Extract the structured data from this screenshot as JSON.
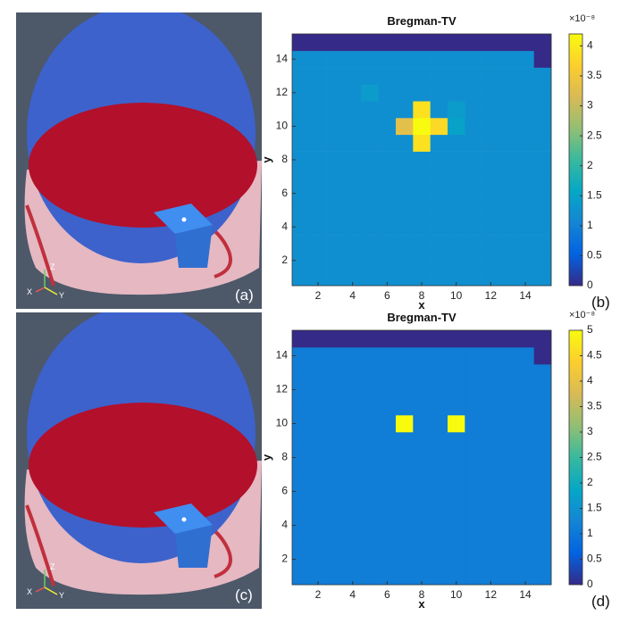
{
  "renders": [
    {
      "label": "(a)",
      "axes": [
        "Z",
        "X",
        "Y"
      ]
    },
    {
      "label": "(c)",
      "axes": [
        "Z",
        "X",
        "Y"
      ]
    }
  ],
  "chart_data": [
    {
      "type": "heatmap",
      "title": "Bregman-TV",
      "panel_label": "(b)",
      "x_label": "x",
      "y_label": "y",
      "x": [
        1,
        2,
        3,
        4,
        5,
        6,
        7,
        8,
        9,
        10,
        11,
        12,
        13,
        14,
        15
      ],
      "y": [
        1,
        2,
        3,
        4,
        5,
        6,
        7,
        8,
        9,
        10,
        11,
        12,
        13,
        14,
        15
      ],
      "z": [
        [
          1.2,
          1.2,
          1.2,
          1.2,
          1.2,
          1.2,
          1.2,
          1.2,
          1.2,
          1.2,
          1.2,
          1.2,
          1.2,
          1.2,
          1.2
        ],
        [
          1.2,
          1.2,
          1.2,
          1.2,
          1.2,
          1.2,
          1.2,
          1.2,
          1.2,
          1.2,
          1.2,
          1.2,
          1.2,
          1.2,
          1.2
        ],
        [
          1.2,
          1.2,
          1.2,
          1.2,
          1.2,
          1.2,
          1.2,
          1.2,
          1.2,
          1.2,
          1.2,
          1.2,
          1.2,
          1.2,
          1.2
        ],
        [
          1.2,
          1.2,
          1.2,
          1.2,
          1.2,
          1.2,
          1.2,
          1.2,
          1.2,
          1.2,
          1.2,
          1.2,
          1.2,
          1.2,
          1.2
        ],
        [
          1.2,
          1.2,
          1.2,
          1.2,
          1.2,
          1.2,
          1.2,
          1.2,
          1.2,
          1.2,
          1.2,
          1.2,
          1.2,
          1.2,
          1.2
        ],
        [
          1.2,
          1.2,
          1.2,
          1.2,
          1.2,
          1.2,
          1.2,
          1.2,
          1.2,
          1.2,
          1.2,
          1.2,
          1.2,
          1.2,
          1.2
        ],
        [
          1.2,
          1.2,
          1.2,
          1.2,
          1.2,
          1.2,
          1.2,
          1.2,
          1.2,
          1.2,
          1.2,
          1.2,
          1.2,
          1.2,
          1.2
        ],
        [
          1.2,
          1.2,
          1.2,
          1.2,
          1.2,
          1.2,
          1.2,
          1.2,
          1.2,
          1.2,
          1.2,
          1.2,
          1.2,
          1.2,
          1.2
        ],
        [
          1.2,
          1.2,
          1.2,
          1.2,
          1.2,
          1.2,
          1.2,
          3.9,
          1.2,
          1.2,
          1.2,
          1.2,
          1.2,
          1.2,
          1.2
        ],
        [
          1.2,
          1.2,
          1.2,
          1.2,
          1.2,
          1.2,
          3.3,
          4.2,
          3.8,
          1.5,
          1.2,
          1.2,
          1.2,
          1.2,
          1.2
        ],
        [
          1.2,
          1.2,
          1.2,
          1.2,
          1.2,
          1.2,
          1.2,
          3.9,
          1.2,
          1.4,
          1.2,
          1.2,
          1.2,
          1.2,
          1.2
        ],
        [
          1.2,
          1.2,
          1.2,
          1.2,
          1.4,
          1.2,
          1.2,
          1.2,
          1.2,
          1.2,
          1.2,
          1.2,
          1.2,
          1.2,
          1.2
        ],
        [
          1.2,
          1.2,
          1.2,
          1.2,
          1.2,
          1.2,
          1.2,
          1.2,
          1.2,
          1.2,
          1.2,
          1.2,
          1.2,
          1.2,
          1.2
        ],
        [
          1.2,
          1.2,
          1.2,
          1.2,
          1.2,
          1.2,
          1.2,
          1.2,
          1.2,
          1.2,
          1.2,
          1.2,
          1.2,
          1.2,
          0
        ],
        [
          0,
          0,
          0,
          0,
          0,
          0,
          0,
          0,
          0,
          0,
          0,
          0,
          0,
          0,
          0
        ]
      ],
      "xlim": [
        0.5,
        15.5
      ],
      "ylim": [
        0.5,
        15.5
      ],
      "xticks": [
        2,
        4,
        6,
        8,
        10,
        12,
        14
      ],
      "yticks": [
        2,
        4,
        6,
        8,
        10,
        12,
        14
      ],
      "colorbar_lim": [
        0,
        4.2
      ],
      "colorbar_ticks": [
        0,
        0.5,
        1,
        1.5,
        2,
        2.5,
        3,
        3.5,
        4
      ],
      "colorbar_multiplier": "×10⁻⁸",
      "colormap": "parula"
    },
    {
      "type": "heatmap",
      "title": "Bregman-TV",
      "panel_label": "(d)",
      "x_label": "x",
      "y_label": "y",
      "x": [
        1,
        2,
        3,
        4,
        5,
        6,
        7,
        8,
        9,
        10,
        11,
        12,
        13,
        14,
        15
      ],
      "y": [
        1,
        2,
        3,
        4,
        5,
        6,
        7,
        8,
        9,
        10,
        11,
        12,
        13,
        14,
        15
      ],
      "z": [
        [
          1.1,
          1.1,
          1.1,
          1.1,
          1.1,
          1.1,
          1.1,
          1.1,
          1.1,
          1.1,
          1.1,
          1.1,
          1.1,
          1.1,
          1.1
        ],
        [
          1.1,
          1.1,
          1.1,
          1.1,
          1.1,
          1.1,
          1.1,
          1.1,
          1.1,
          1.1,
          1.1,
          1.1,
          1.1,
          1.1,
          1.1
        ],
        [
          1.1,
          1.1,
          1.1,
          1.1,
          1.1,
          1.1,
          1.1,
          1.1,
          1.1,
          1.1,
          1.1,
          1.1,
          1.1,
          1.1,
          1.1
        ],
        [
          1.1,
          1.1,
          1.1,
          1.1,
          1.1,
          1.1,
          1.1,
          1.1,
          1.1,
          1.1,
          1.1,
          1.1,
          1.1,
          1.1,
          1.1
        ],
        [
          1.1,
          1.1,
          1.1,
          1.1,
          1.1,
          1.1,
          1.1,
          1.1,
          1.1,
          1.1,
          1.1,
          1.1,
          1.1,
          1.1,
          1.1
        ],
        [
          1.1,
          1.1,
          1.1,
          1.1,
          1.1,
          1.1,
          1.1,
          1.1,
          1.1,
          1.1,
          1.1,
          1.1,
          1.1,
          1.1,
          1.1
        ],
        [
          1.1,
          1.1,
          1.1,
          1.1,
          1.1,
          1.1,
          1.1,
          1.1,
          1.1,
          1.1,
          1.1,
          1.1,
          1.1,
          1.1,
          1.1
        ],
        [
          1.1,
          1.1,
          1.1,
          1.1,
          1.1,
          1.1,
          1.1,
          1.1,
          1.1,
          1.1,
          1.1,
          1.1,
          1.1,
          1.1,
          1.1
        ],
        [
          1.1,
          1.1,
          1.1,
          1.1,
          1.1,
          1.1,
          1.1,
          1.1,
          1.1,
          1.1,
          1.1,
          1.1,
          1.1,
          1.1,
          1.1
        ],
        [
          1.1,
          1.1,
          1.1,
          1.1,
          1.1,
          1.1,
          5,
          1.1,
          1.1,
          5,
          1.1,
          1.1,
          1.1,
          1.1,
          1.1
        ],
        [
          1.1,
          1.1,
          1.1,
          1.1,
          1.1,
          1.1,
          1.1,
          1.1,
          1.1,
          1.1,
          1.1,
          1.1,
          1.1,
          1.1,
          1.1
        ],
        [
          1.1,
          1.1,
          1.1,
          1.1,
          1.1,
          1.1,
          1.1,
          1.1,
          1.1,
          1.1,
          1.1,
          1.1,
          1.1,
          1.1,
          1.1
        ],
        [
          1.1,
          1.1,
          1.1,
          1.1,
          1.1,
          1.1,
          1.1,
          1.1,
          1.1,
          1.1,
          1.1,
          1.1,
          1.1,
          1.1,
          1.1
        ],
        [
          1.1,
          1.1,
          1.1,
          1.1,
          1.1,
          1.1,
          1.1,
          1.1,
          1.1,
          1.1,
          1.1,
          1.1,
          1.1,
          1.1,
          0
        ],
        [
          0,
          0,
          0,
          0,
          0,
          0,
          0,
          0,
          0,
          0,
          0,
          0,
          0,
          0,
          0
        ]
      ],
      "xlim": [
        0.5,
        15.5
      ],
      "ylim": [
        0.5,
        15.5
      ],
      "xticks": [
        2,
        4,
        6,
        8,
        10,
        12,
        14
      ],
      "yticks": [
        2,
        4,
        6,
        8,
        10,
        12,
        14
      ],
      "colorbar_lim": [
        0,
        5
      ],
      "colorbar_ticks": [
        0,
        0.5,
        1,
        1.5,
        2,
        2.5,
        3,
        3.5,
        4,
        4.5,
        5
      ],
      "colorbar_multiplier": "×10⁻⁸",
      "colormap": "parula"
    }
  ]
}
